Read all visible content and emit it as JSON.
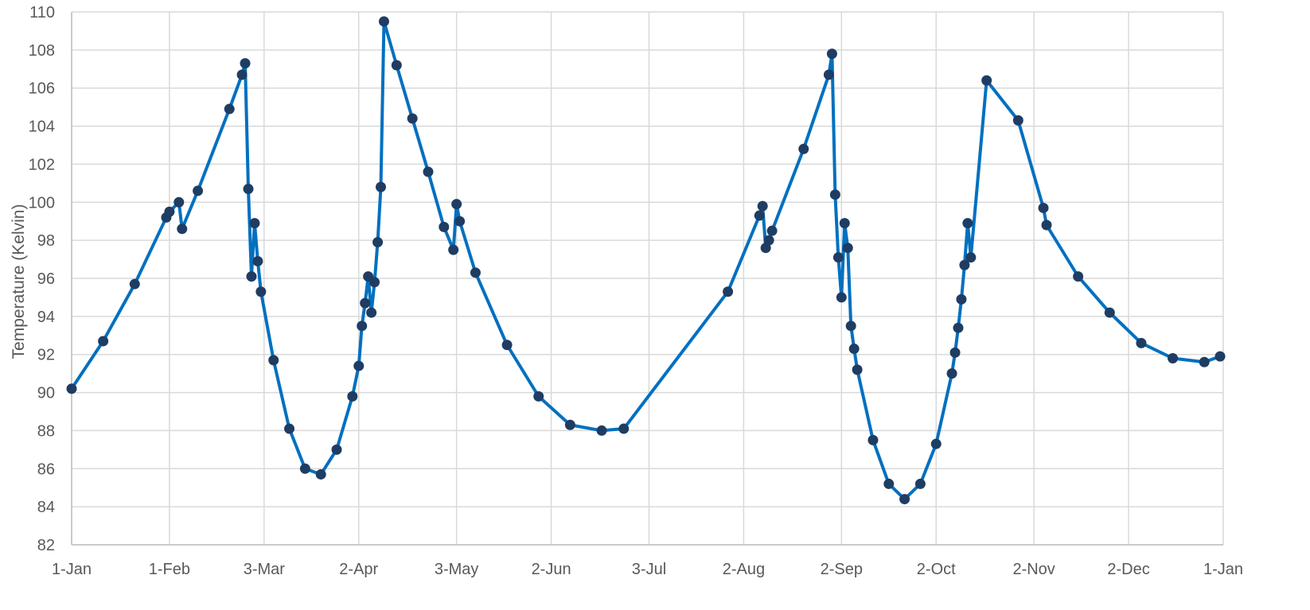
{
  "chart_data": {
    "type": "line",
    "title": "",
    "xlabel": "",
    "ylabel": "Temperature (Kelvin)",
    "ylim": [
      82,
      110
    ],
    "y_ticks": [
      82,
      84,
      86,
      88,
      90,
      92,
      94,
      96,
      98,
      100,
      102,
      104,
      106,
      108,
      110
    ],
    "xlim": [
      "1-Jan",
      "1-Jan"
    ],
    "x_tick_labels": [
      "1-Jan",
      "1-Feb",
      "3-Mar",
      "2-Apr",
      "3-May",
      "2-Jun",
      "3-Jul",
      "2-Aug",
      "2-Sep",
      "2-Oct",
      "2-Nov",
      "2-Dec",
      "1-Jan"
    ],
    "grid": true,
    "legend": "none",
    "colors": {
      "line": "#0070C0",
      "marker": "#1F3D63",
      "grid": "#D9D9D9",
      "text": "#595959"
    },
    "series": [
      {
        "marker": "circle",
        "x": [
          "1-Jan",
          "11-Jan",
          "21-Jan",
          "31-Jan",
          "1-Feb",
          "4-Feb",
          "5-Feb",
          "10-Feb",
          "20-Feb",
          "24-Feb",
          "25-Feb",
          "26-Feb",
          "27-Feb",
          "28-Feb",
          "1-Mar",
          "2-Mar",
          "6-Mar",
          "11-Mar",
          "16-Mar",
          "21-Mar",
          "26-Mar",
          "31-Mar",
          "2-Apr",
          "3-Apr",
          "4-Apr",
          "5-Apr",
          "6-Apr",
          "7-Apr",
          "8-Apr",
          "9-Apr",
          "10-Apr",
          "14-Apr",
          "19-Apr",
          "24-Apr",
          "29-Apr",
          "2-May",
          "3-May",
          "4-May",
          "9-May",
          "19-May",
          "29-May",
          "8-Jun",
          "18-Jun",
          "25-Jun",
          "28-Jul",
          "7-Aug",
          "8-Aug",
          "9-Aug",
          "10-Aug",
          "11-Aug",
          "21-Aug",
          "29-Aug",
          "30-Aug",
          "31-Aug",
          "1-Sep",
          "2-Sep",
          "3-Sep",
          "4-Sep",
          "5-Sep",
          "6-Sep",
          "7-Sep",
          "12-Sep",
          "17-Sep",
          "22-Sep",
          "27-Sep",
          "2-Oct",
          "7-Oct",
          "8-Oct",
          "9-Oct",
          "10-Oct",
          "11-Oct",
          "12-Oct",
          "13-Oct",
          "18-Oct",
          "28-Oct",
          "5-Nov",
          "6-Nov",
          "16-Nov",
          "26-Nov",
          "6-Dec",
          "16-Dec",
          "26-Dec",
          "31-Dec"
        ],
        "y": [
          90.2,
          92.7,
          95.7,
          99.2,
          99.5,
          100.0,
          98.6,
          100.6,
          104.9,
          106.7,
          107.3,
          100.7,
          96.1,
          98.9,
          96.9,
          95.3,
          91.7,
          88.1,
          86.0,
          85.7,
          87.0,
          89.8,
          91.4,
          93.5,
          94.7,
          96.1,
          94.2,
          95.8,
          97.9,
          100.8,
          109.5,
          107.2,
          104.4,
          101.6,
          98.7,
          97.5,
          99.9,
          99.0,
          96.3,
          92.5,
          89.8,
          88.3,
          88.0,
          88.1,
          95.3,
          99.3,
          99.8,
          97.6,
          98.0,
          98.5,
          102.8,
          106.7,
          107.8,
          100.4,
          97.1,
          95.0,
          98.9,
          97.6,
          93.5,
          92.3,
          91.2,
          87.5,
          85.2,
          84.4,
          85.2,
          87.3,
          91.0,
          92.1,
          93.4,
          94.9,
          96.7,
          98.9,
          97.1,
          106.4,
          104.3,
          99.7,
          98.8,
          96.1,
          94.2,
          92.6,
          91.8,
          91.6,
          91.9
        ]
      }
    ]
  }
}
